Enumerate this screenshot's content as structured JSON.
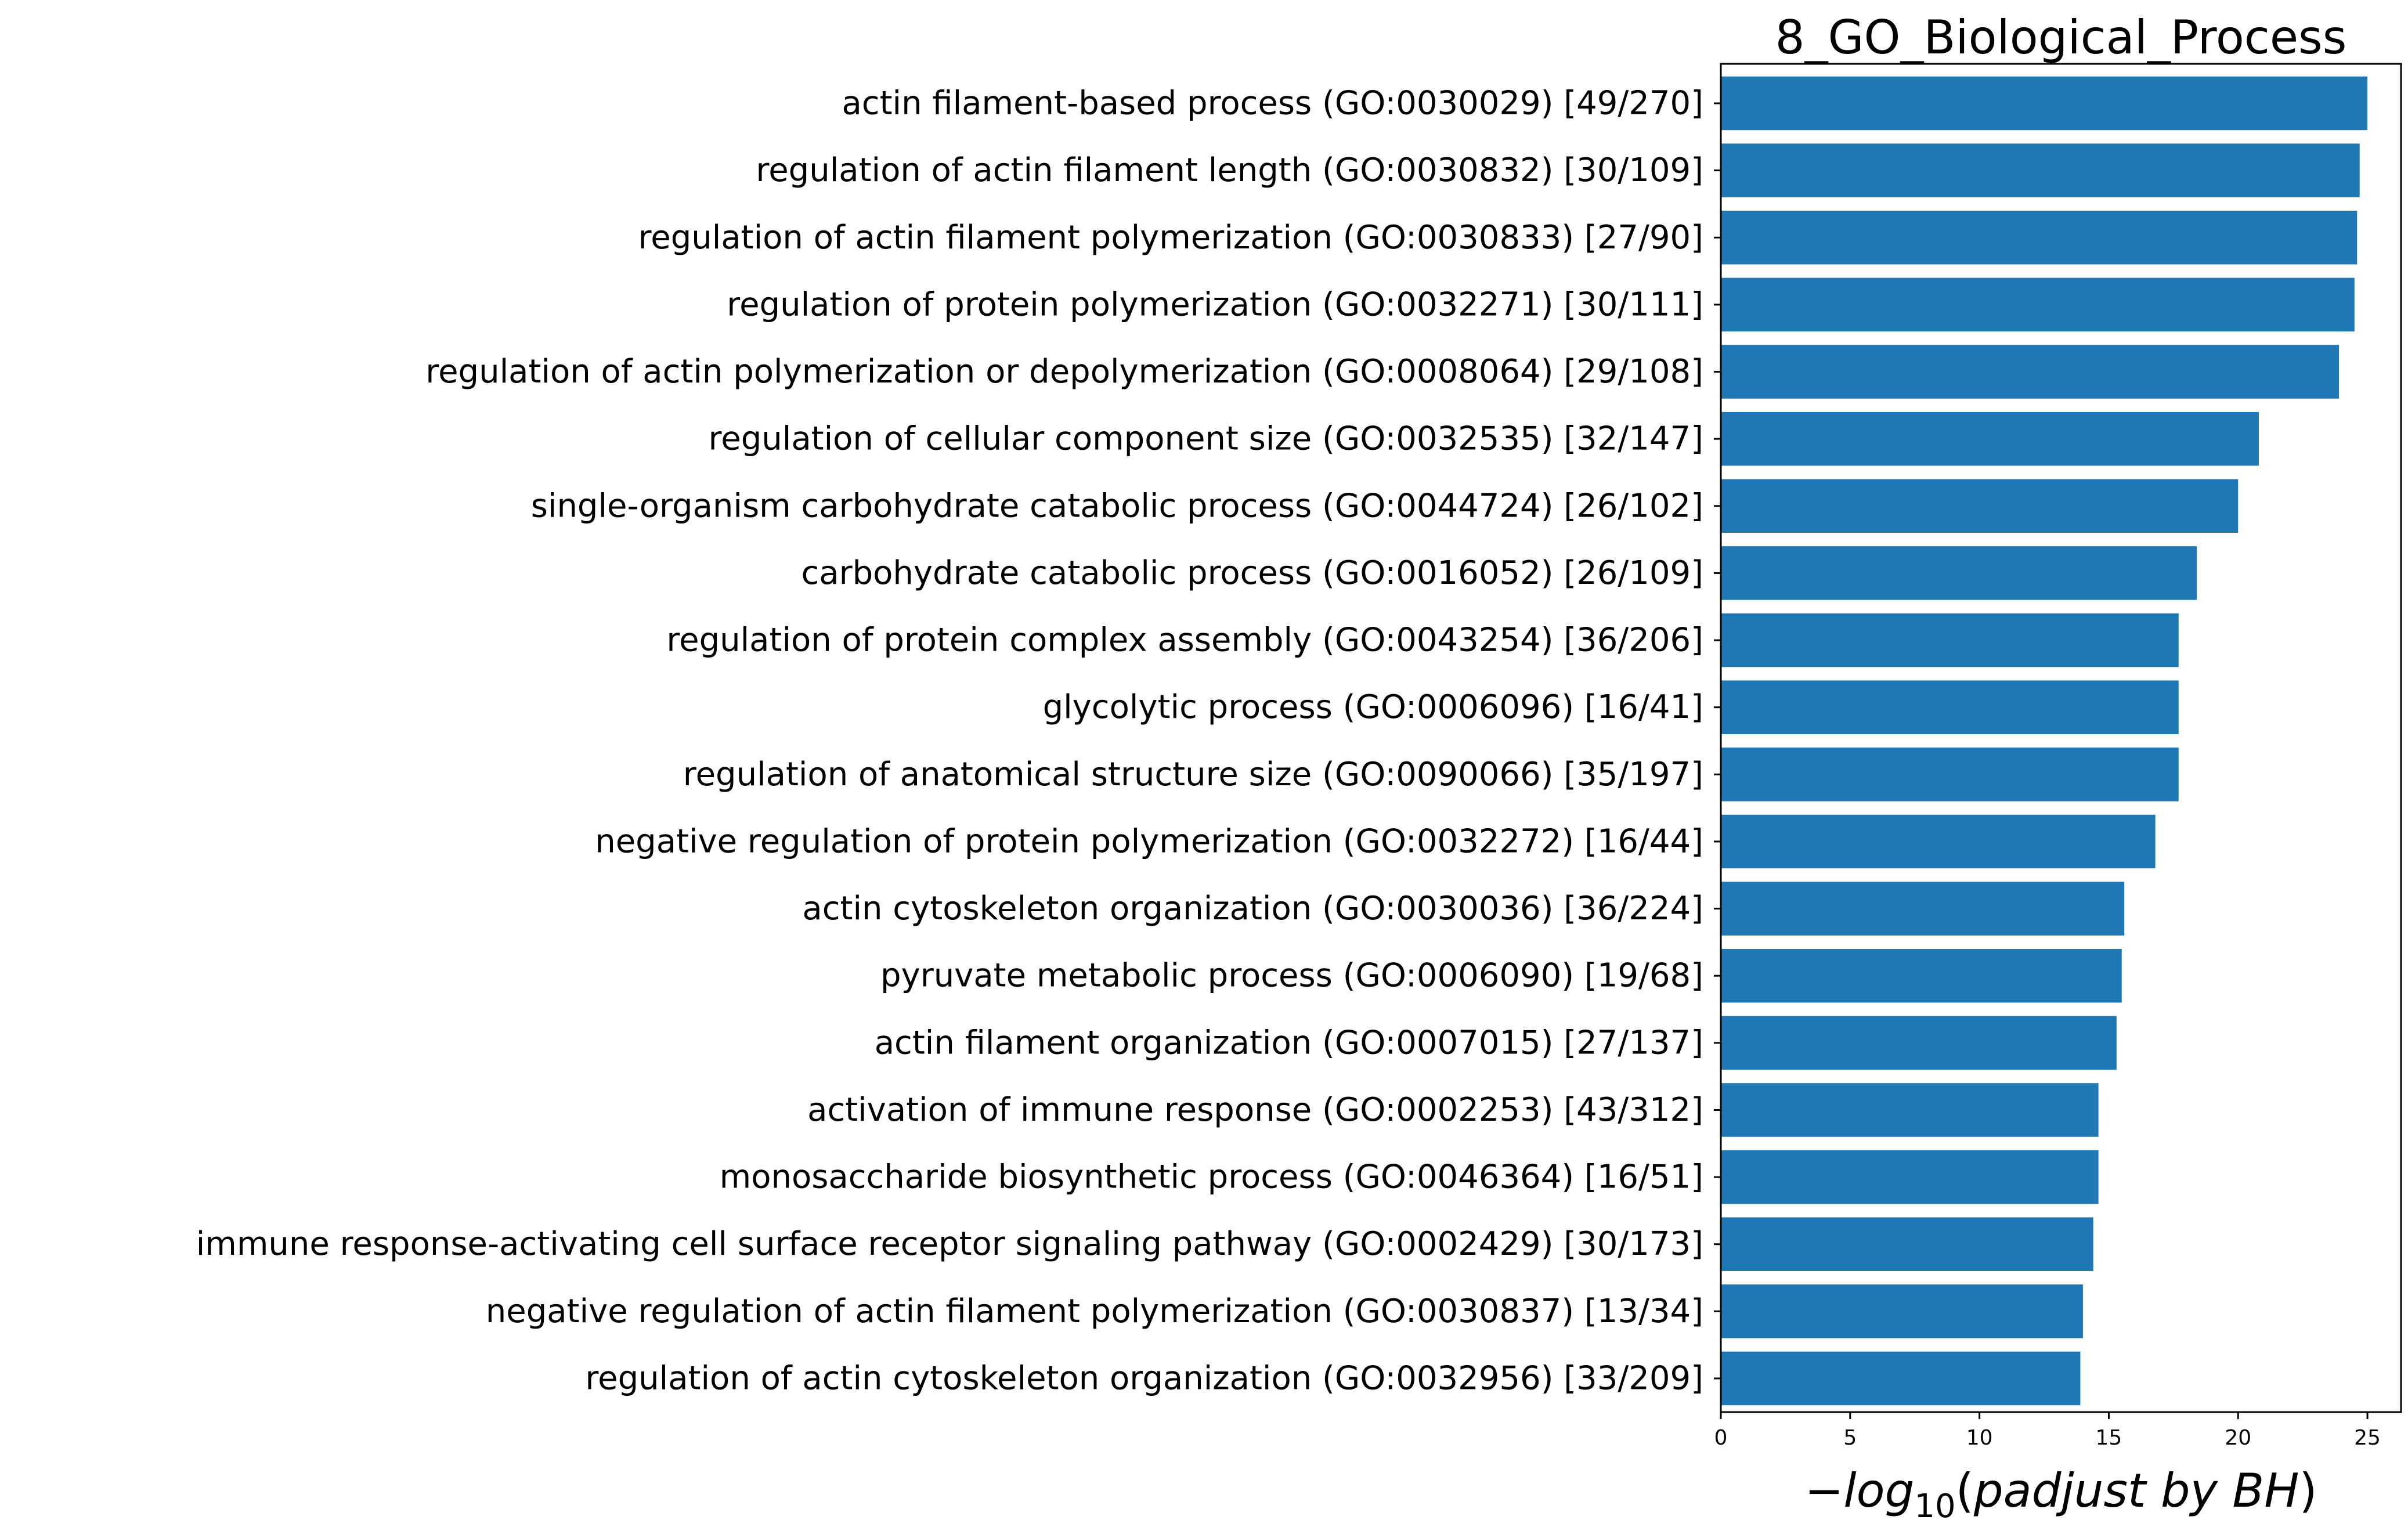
{
  "chart_data": {
    "type": "bar",
    "orientation": "horizontal",
    "title": "8_GO_Biological_Process",
    "xlabel": {
      "minus": "−",
      "log": "log",
      "base": "10",
      "open": "(",
      "text": "padjust by BH",
      "close": ")"
    },
    "ylabel": "",
    "xlim": [
      0,
      26.3
    ],
    "xticks": [
      0,
      5,
      10,
      15,
      20,
      25
    ],
    "grid": false,
    "bar_color": "#1f77b4",
    "categories": [
      "actin filament-based process (GO:0030029) [49/270]",
      "regulation of actin filament length (GO:0030832) [30/109]",
      "regulation of actin filament polymerization (GO:0030833) [27/90]",
      "regulation of protein polymerization (GO:0032271) [30/111]",
      "regulation of actin polymerization or depolymerization (GO:0008064) [29/108]",
      "regulation of cellular component size (GO:0032535) [32/147]",
      "single-organism carbohydrate catabolic process (GO:0044724) [26/102]",
      "carbohydrate catabolic process (GO:0016052) [26/109]",
      "regulation of protein complex assembly (GO:0043254) [36/206]",
      "glycolytic process (GO:0006096) [16/41]",
      "regulation of anatomical structure size (GO:0090066) [35/197]",
      "negative regulation of protein polymerization (GO:0032272) [16/44]",
      "actin cytoskeleton organization (GO:0030036) [36/224]",
      "pyruvate metabolic process (GO:0006090) [19/68]",
      "actin filament organization (GO:0007015) [27/137]",
      "activation of immune response (GO:0002253) [43/312]",
      "monosaccharide biosynthetic process (GO:0046364) [16/51]",
      "immune response-activating cell surface receptor signaling pathway (GO:0002429) [30/173]",
      "negative regulation of actin filament polymerization (GO:0030837) [13/34]",
      "regulation of actin cytoskeleton organization (GO:0032956) [33/209]"
    ],
    "values": [
      25.0,
      24.7,
      24.6,
      24.5,
      23.9,
      20.8,
      20.0,
      18.4,
      17.7,
      17.7,
      17.7,
      16.8,
      15.6,
      15.5,
      15.3,
      14.6,
      14.6,
      14.4,
      14.0,
      13.9
    ]
  }
}
